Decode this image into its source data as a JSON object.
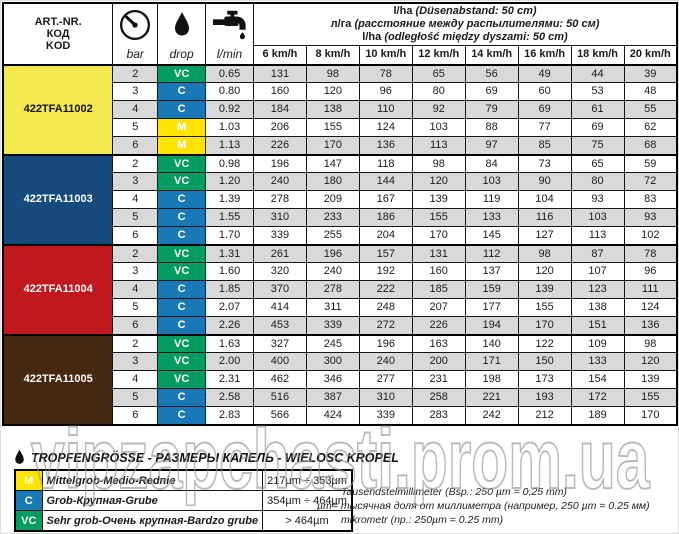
{
  "header": {
    "code_lines": [
      "ART.-NR.",
      "КОД",
      "KOD"
    ],
    "pressure_label": "bar",
    "drop_label": "drop",
    "flow_label": "l/min",
    "spacing_lines": [
      {
        "bold": "l/ha",
        "rest": "(Düsenabstand: 50 cm)"
      },
      {
        "bold": "л/га",
        "rest": "(расстояние между распылителями: 50 см)"
      },
      {
        "bold": "l/ha",
        "rest": "(odległość między dyszami: 50 cm)"
      }
    ],
    "speed_columns": [
      "6 km/h",
      "8 km/h",
      "10 km/h",
      "12 km/h",
      "14 km/h",
      "16 km/h",
      "18 km/h",
      "20 km/h"
    ]
  },
  "drop_colors": {
    "VC": "#009C62",
    "C": "#1879B6",
    "M": "#FFE400"
  },
  "zebra_shade_color": "#D9D9D9",
  "groups": [
    {
      "code": "422TFA11002",
      "color": "#F3E94F",
      "text_color": "#111111",
      "rows": [
        {
          "bar": 2,
          "drop": "VC",
          "lmin": "0.65",
          "values": [
            131,
            98,
            78,
            65,
            56,
            49,
            44,
            39
          ]
        },
        {
          "bar": 3,
          "drop": "C",
          "lmin": "0.80",
          "values": [
            160,
            120,
            96,
            80,
            69,
            60,
            53,
            48
          ]
        },
        {
          "bar": 4,
          "drop": "C",
          "lmin": "0.92",
          "values": [
            184,
            138,
            110,
            92,
            79,
            69,
            61,
            55
          ]
        },
        {
          "bar": 5,
          "drop": "M",
          "lmin": "1.03",
          "values": [
            206,
            155,
            124,
            103,
            88,
            77,
            69,
            62
          ]
        },
        {
          "bar": 6,
          "drop": "M",
          "lmin": "1.13",
          "values": [
            226,
            170,
            136,
            113,
            97,
            85,
            75,
            68
          ]
        }
      ]
    },
    {
      "code": "422TFA11003",
      "color": "#164A7C",
      "text_color": "#ffffff",
      "rows": [
        {
          "bar": 2,
          "drop": "VC",
          "lmin": "0.98",
          "values": [
            196,
            147,
            118,
            98,
            84,
            73,
            65,
            59
          ]
        },
        {
          "bar": 3,
          "drop": "VC",
          "lmin": "1.20",
          "values": [
            240,
            180,
            144,
            120,
            103,
            90,
            80,
            72
          ]
        },
        {
          "bar": 4,
          "drop": "C",
          "lmin": "1.39",
          "values": [
            278,
            209,
            167,
            139,
            119,
            104,
            93,
            83
          ]
        },
        {
          "bar": 5,
          "drop": "C",
          "lmin": "1.55",
          "values": [
            310,
            233,
            186,
            155,
            133,
            116,
            103,
            93
          ]
        },
        {
          "bar": 6,
          "drop": "C",
          "lmin": "1.70",
          "values": [
            339,
            255,
            204,
            170,
            145,
            127,
            113,
            102
          ]
        }
      ]
    },
    {
      "code": "422TFA11004",
      "color": "#C2181D",
      "text_color": "#ffffff",
      "rows": [
        {
          "bar": 2,
          "drop": "VC",
          "lmin": "1.31",
          "values": [
            261,
            196,
            157,
            131,
            112,
            98,
            87,
            78
          ]
        },
        {
          "bar": 3,
          "drop": "VC",
          "lmin": "1.60",
          "values": [
            320,
            240,
            192,
            160,
            137,
            120,
            107,
            96
          ]
        },
        {
          "bar": 4,
          "drop": "C",
          "lmin": "1.85",
          "values": [
            370,
            278,
            222,
            185,
            159,
            139,
            123,
            111
          ]
        },
        {
          "bar": 5,
          "drop": "C",
          "lmin": "2.07",
          "values": [
            414,
            311,
            248,
            207,
            177,
            155,
            138,
            124
          ]
        },
        {
          "bar": 6,
          "drop": "C",
          "lmin": "2.26",
          "values": [
            453,
            339,
            272,
            226,
            194,
            170,
            151,
            136
          ]
        }
      ]
    },
    {
      "code": "422TFA11005",
      "color": "#46270F",
      "text_color": "#ffffff",
      "rows": [
        {
          "bar": 2,
          "drop": "VC",
          "lmin": "1.63",
          "values": [
            327,
            245,
            196,
            163,
            140,
            122,
            109,
            98
          ]
        },
        {
          "bar": 3,
          "drop": "VC",
          "lmin": "2.00",
          "values": [
            400,
            300,
            240,
            200,
            171,
            150,
            133,
            120
          ]
        },
        {
          "bar": 4,
          "drop": "VC",
          "lmin": "2.31",
          "values": [
            462,
            346,
            277,
            231,
            198,
            173,
            154,
            139
          ]
        },
        {
          "bar": 5,
          "drop": "C",
          "lmin": "2.58",
          "values": [
            516,
            387,
            310,
            258,
            221,
            193,
            172,
            155
          ]
        },
        {
          "bar": 6,
          "drop": "C",
          "lmin": "2.83",
          "values": [
            566,
            424,
            339,
            283,
            242,
            212,
            189,
            170
          ]
        }
      ]
    }
  ],
  "legend": {
    "title": "TROPFENGRÖSSE - РАЗМЕРЫ КАПЕЛЬ - WIELOSC KROPEL",
    "rows": [
      {
        "code": "M",
        "name": "Mittelgrob-Medio-Rednie",
        "range": "217µm ÷ 353µm"
      },
      {
        "code": "C",
        "name": "Grob-Крупная-Grube",
        "range": "354µm ÷ 464µm"
      },
      {
        "code": "VC",
        "name": "Sehr grob-Очень крупная-Bardzo grube",
        "range": "> 464µm"
      }
    ]
  },
  "notes": [
    {
      "indent": true,
      "text": "Tausendstelmillimeter (Bsp.: 250 µm = 0,25 mm)"
    },
    {
      "indent": false,
      "text": "µm= тысячная доля от миллиметра (например, 250 µm = 0.25 мм)"
    },
    {
      "indent": true,
      "text": "mikrometr (np.: 250µm = 0.25 mm)"
    }
  ],
  "watermark": {
    "text": "vipzapchasti.prom.ua",
    "color": "#969696"
  }
}
